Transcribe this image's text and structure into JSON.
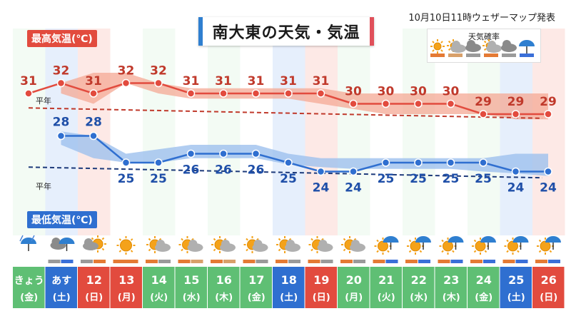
{
  "title": "南大東の天気・気温",
  "issued": "10月10日11時ウェザーマップ発表",
  "high_label": "最高気温(℃)",
  "low_label": "最低気温(℃)",
  "normal_label": "平年",
  "legend": {
    "title": "天気確率",
    "icons": [
      "sun-icon",
      "sun-cloud-icon",
      "cloud-icon",
      "sun-cloud-icon",
      "cloud-icon",
      "umbrella-icon"
    ],
    "colors": [
      "#e47a34",
      "#d8a06a",
      "#9a9a9a",
      "#e47a34",
      "#9a9a9a",
      "#3a6fd8"
    ]
  },
  "colors": {
    "high": "#e24b3e",
    "low": "#2f6fd0",
    "high_band": "#f4a894",
    "low_band": "#9ec0ee",
    "weekday_bg": "#5fbf74",
    "saturday_bg": "#2f6fd0",
    "sunday_bg": "#e24b3e"
  },
  "chart_data": {
    "type": "line",
    "categories": [
      "きょう",
      "あす",
      "12",
      "13",
      "14",
      "15",
      "16",
      "17",
      "18",
      "19",
      "20",
      "21",
      "22",
      "23",
      "24",
      "25",
      "26"
    ],
    "weekdays": [
      "(金)",
      "(土)",
      "(日)",
      "(月)",
      "(火)",
      "(水)",
      "(木)",
      "(金)",
      "(土)",
      "(日)",
      "(月)",
      "(火)",
      "(水)",
      "(木)",
      "(金)",
      "(土)",
      "(日)"
    ],
    "series": [
      {
        "name": "最高気温(℃)",
        "values": [
          31,
          32,
          31,
          32,
          32,
          31,
          31,
          31,
          31,
          31,
          30,
          30,
          30,
          30,
          29,
          29,
          29
        ]
      },
      {
        "name": "最低気温(℃)",
        "values": [
          null,
          28,
          28,
          25,
          25,
          26,
          26,
          26,
          25,
          24,
          24,
          25,
          25,
          25,
          25,
          24,
          24
        ]
      }
    ],
    "high_range": [
      null,
      [
        31,
        32
      ],
      [
        30,
        33
      ],
      [
        32,
        33
      ],
      [
        31,
        32
      ],
      [
        30.5,
        31.5
      ],
      [
        30.5,
        31.5
      ],
      [
        30.5,
        31.5
      ],
      [
        30.5,
        31.5
      ],
      [
        30,
        31.5
      ],
      [
        29.5,
        31
      ],
      [
        29,
        31
      ],
      [
        29,
        31
      ],
      [
        29,
        31
      ],
      [
        29,
        31
      ],
      [
        28.5,
        31
      ],
      [
        28.5,
        31
      ]
    ],
    "low_range": [
      null,
      [
        27,
        28.5
      ],
      [
        25.5,
        28
      ],
      [
        25,
        26
      ],
      [
        25,
        26.5
      ],
      [
        25.5,
        27
      ],
      [
        25.5,
        27
      ],
      [
        25.5,
        27
      ],
      [
        24.8,
        26
      ],
      [
        24.5,
        25.5
      ],
      [
        24.3,
        25.5
      ],
      [
        24.3,
        25.5
      ],
      [
        24.3,
        25.5
      ],
      [
        24.3,
        25.5
      ],
      [
        24,
        25.5
      ],
      [
        23.8,
        26
      ],
      [
        23.5,
        26
      ]
    ],
    "normal_high": [
      29.6,
      28.6
    ],
    "normal_low": [
      24.5,
      23.3
    ],
    "weather_icons": [
      "umbrella-icon",
      "cloud-umbrella-icon",
      "cloud-sun-icon",
      "sun-icon",
      "sun-cloud-icon",
      "sun-cloud-icon",
      "sun-cloud-icon",
      "sun-cloud-icon",
      "sun-cloud-icon",
      "sun-cloud-icon",
      "sun-cloud-icon",
      "sun-umbrella-icon",
      "sun-umbrella-icon",
      "sun-umbrella-icon",
      "sun-umbrella-icon",
      "sun-umbrella-icon",
      "sun-umbrella-icon"
    ],
    "prob_bars": [
      [],
      [
        "#9a9a9a",
        "#3a6fd8"
      ],
      [
        "#9a9a9a",
        "#e47a34"
      ],
      [
        "#e47a34"
      ],
      [
        "#e47a34",
        "#9a9a9a"
      ],
      [
        "#e47a34",
        "#d8a06a"
      ],
      [
        "#e47a34",
        "#d8a06a"
      ],
      [
        "#e47a34",
        "#9a9a9a"
      ],
      [
        "#e47a34",
        "#9a9a9a"
      ],
      [
        "#e47a34",
        "#9a9a9a"
      ],
      [
        "#e47a34",
        "#9a9a9a"
      ],
      [
        "#e47a34",
        "#3a6fd8"
      ],
      [
        "#e47a34",
        "#3a6fd8"
      ],
      [
        "#e47a34",
        "#3a6fd8"
      ],
      [
        "#e47a34",
        "#3a6fd8"
      ],
      [
        "#e47a34",
        "#3a6fd8"
      ],
      [
        "#e47a34",
        "#3a6fd8"
      ]
    ]
  }
}
